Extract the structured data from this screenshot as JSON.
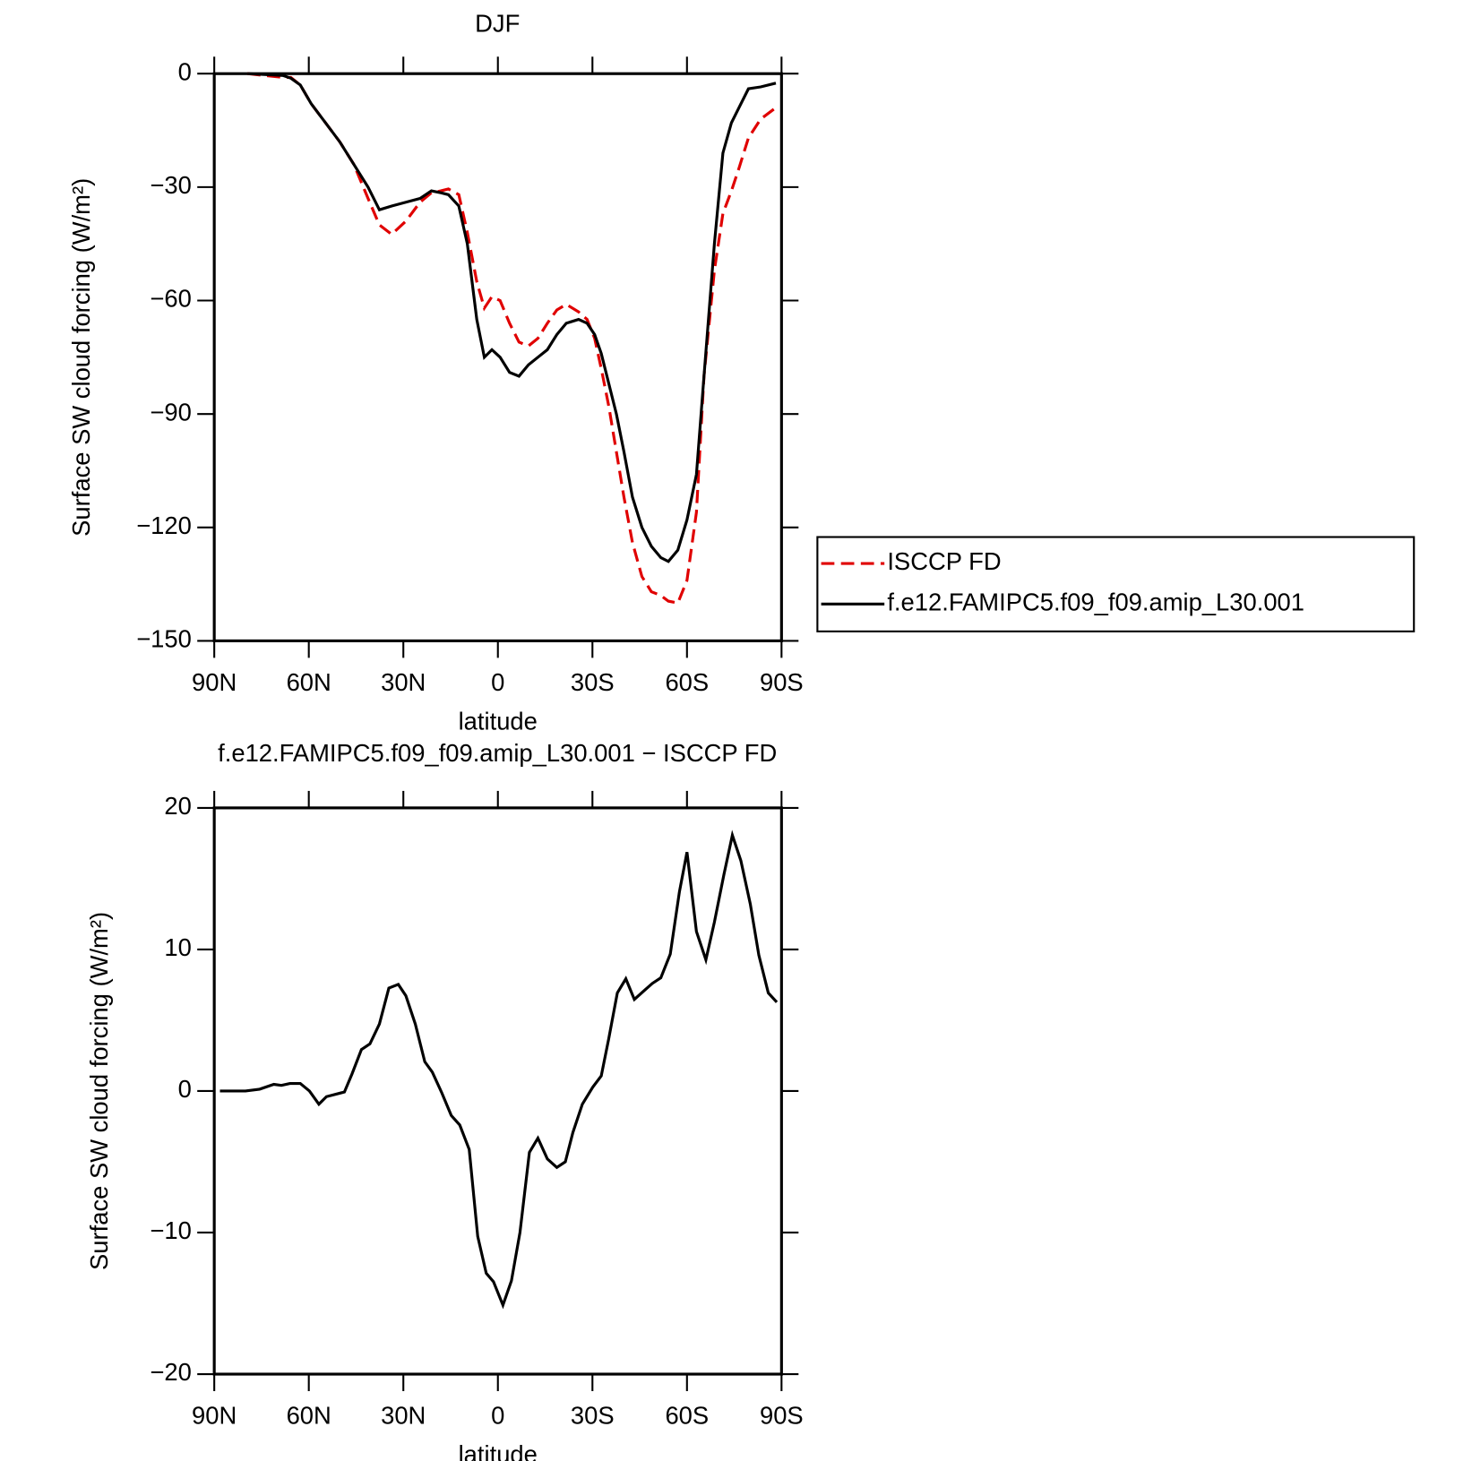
{
  "chart_data": [
    {
      "type": "line",
      "title": "DJF",
      "xlabel": "latitude",
      "ylabel": "Surface SW cloud forcing (W/m²)",
      "xlim": [
        90,
        -90
      ],
      "xticks": [
        {
          "value": 90,
          "label": "90N"
        },
        {
          "value": 60,
          "label": "60N"
        },
        {
          "value": 30,
          "label": "30N"
        },
        0,
        {
          "value": -30,
          "label": "30S"
        },
        {
          "value": -60,
          "label": "60S"
        },
        {
          "value": -90,
          "label": "90S"
        }
      ],
      "ylim": [
        -150,
        0
      ],
      "yticks": [
        0,
        {
          "value": -30,
          "label": "−30"
        },
        {
          "value": -60,
          "label": "−60"
        },
        {
          "value": -90,
          "label": "−90"
        },
        {
          "value": -120,
          "label": "−120"
        },
        {
          "value": -150,
          "label": "−150"
        }
      ],
      "legend": "right",
      "x": [
        79.5,
        68.1,
        65.7,
        62.7,
        59.2,
        54.7,
        50.2,
        45.7,
        41.2,
        37.6,
        33.7,
        29.2,
        24.7,
        21.1,
        18.1,
        15.7,
        12.4,
        9.7,
        6.7,
        4.3,
        1.9,
        -0.7,
        -3.7,
        -6.7,
        -9.7,
        -12.7,
        -15.7,
        -18.7,
        -21.7,
        -25.6,
        -28.3,
        -30.7,
        -32.8,
        -35.2,
        -37.6,
        -40.0,
        -42.7,
        -45.7,
        -48.7,
        -51.7,
        -54.1,
        -57.1,
        -60.0,
        -63.0,
        -65.4,
        -68.7,
        -71.4,
        -74.1,
        -76.5,
        -79.5,
        -83.4,
        -88.2
      ],
      "series": [
        {
          "name": "ISCCP FD",
          "color": "#e00000",
          "dash": true,
          "values": [
            0,
            -1,
            -1,
            -3,
            -8,
            -13,
            -18,
            -24,
            -33,
            -40,
            -42.5,
            -39,
            -34,
            -31.5,
            -31,
            -30.5,
            -32,
            -42,
            -55,
            -62,
            -59,
            -60,
            -66,
            -71,
            -72,
            -70,
            -66,
            -62.5,
            -61,
            -63,
            -65,
            -70,
            -78,
            -88,
            -100,
            -112,
            -124,
            -133,
            -137,
            -138,
            -139.5,
            -140,
            -134,
            -116,
            -80,
            -52,
            -37,
            -31,
            -25,
            -17,
            -12,
            -9
          ]
        },
        {
          "name": "f.e12.FAMIPC5.f09_f09.amip_L30.001",
          "color": "#000000",
          "dash": false,
          "values": [
            0,
            -0.5,
            -1.2,
            -3,
            -8,
            -13,
            -18,
            -24,
            -30,
            -36,
            -35,
            -34,
            -33,
            -31,
            -31.5,
            -32,
            -35,
            -45,
            -65,
            -75,
            -73,
            -75,
            -79,
            -80,
            -77,
            -75,
            -73,
            -69,
            -66,
            -65,
            -66,
            -69,
            -74,
            -82,
            -90,
            -100,
            -112,
            -120,
            -125,
            -128,
            -129,
            -126,
            -118,
            -106,
            -80,
            -45,
            -21,
            -13,
            -9,
            -4,
            -3.5,
            -2.5
          ]
        }
      ]
    },
    {
      "type": "line",
      "title": "f.e12.FAMIPC5.f09_f09.amip_L30.001 − ISCCP FD",
      "xlabel": "latitude",
      "ylabel": "Surface SW cloud forcing (W/m²)",
      "xlim": [
        90,
        -90
      ],
      "xticks": [
        {
          "value": 90,
          "label": "90N"
        },
        {
          "value": 60,
          "label": "60N"
        },
        {
          "value": 30,
          "label": "30N"
        },
        0,
        {
          "value": -30,
          "label": "30S"
        },
        {
          "value": -60,
          "label": "60S"
        },
        {
          "value": -90,
          "label": "90S"
        }
      ],
      "ylim": [
        -20,
        20
      ],
      "yticks": [
        20,
        10,
        0,
        {
          "value": -10,
          "label": "−10"
        },
        {
          "value": -20,
          "label": "−20"
        }
      ],
      "color": "#000000",
      "x": [
        88.2,
        80.1,
        75.6,
        71.1,
        68.7,
        66.0,
        62.7,
        59.8,
        56.8,
        54.4,
        48.7,
        46.3,
        43.3,
        40.6,
        37.6,
        34.6,
        31.6,
        29.2,
        26.2,
        23.2,
        20.8,
        17.8,
        14.8,
        12.1,
        9.1,
        6.4,
        3.7,
        1.4,
        -1.6,
        -4.3,
        -7.0,
        -10.0,
        -12.7,
        -15.7,
        -18.7,
        -21.4,
        -23.8,
        -26.8,
        -30.1,
        -32.8,
        -35.2,
        -37.9,
        -40.6,
        -43.3,
        -46.6,
        -49.0,
        -51.7,
        -54.7,
        -57.6,
        -60.0,
        -63.0,
        -66.0,
        -68.7,
        -71.7,
        -74.4,
        -77.1,
        -80.1,
        -82.8,
        -85.8,
        -88.5
      ],
      "values": [
        0,
        0,
        0.13,
        0.47,
        0.4,
        0.53,
        0.53,
        0,
        -0.93,
        -0.4,
        -0.07,
        1.2,
        2.93,
        3.33,
        4.73,
        7.27,
        7.53,
        6.73,
        4.73,
        2.07,
        1.33,
        -0.13,
        -1.73,
        -2.4,
        -4.13,
        -10.27,
        -12.87,
        -13.47,
        -15.13,
        -13.4,
        -10.0,
        -4.33,
        -3.33,
        -4.8,
        -5.4,
        -5.0,
        -2.93,
        -0.93,
        0.27,
        1.07,
        3.73,
        6.93,
        7.93,
        6.47,
        7.13,
        7.6,
        8.0,
        9.67,
        14.07,
        16.87,
        11.27,
        9.27,
        11.93,
        15.27,
        18.07,
        16.27,
        13.2,
        9.6,
        6.93,
        6.27
      ]
    }
  ]
}
